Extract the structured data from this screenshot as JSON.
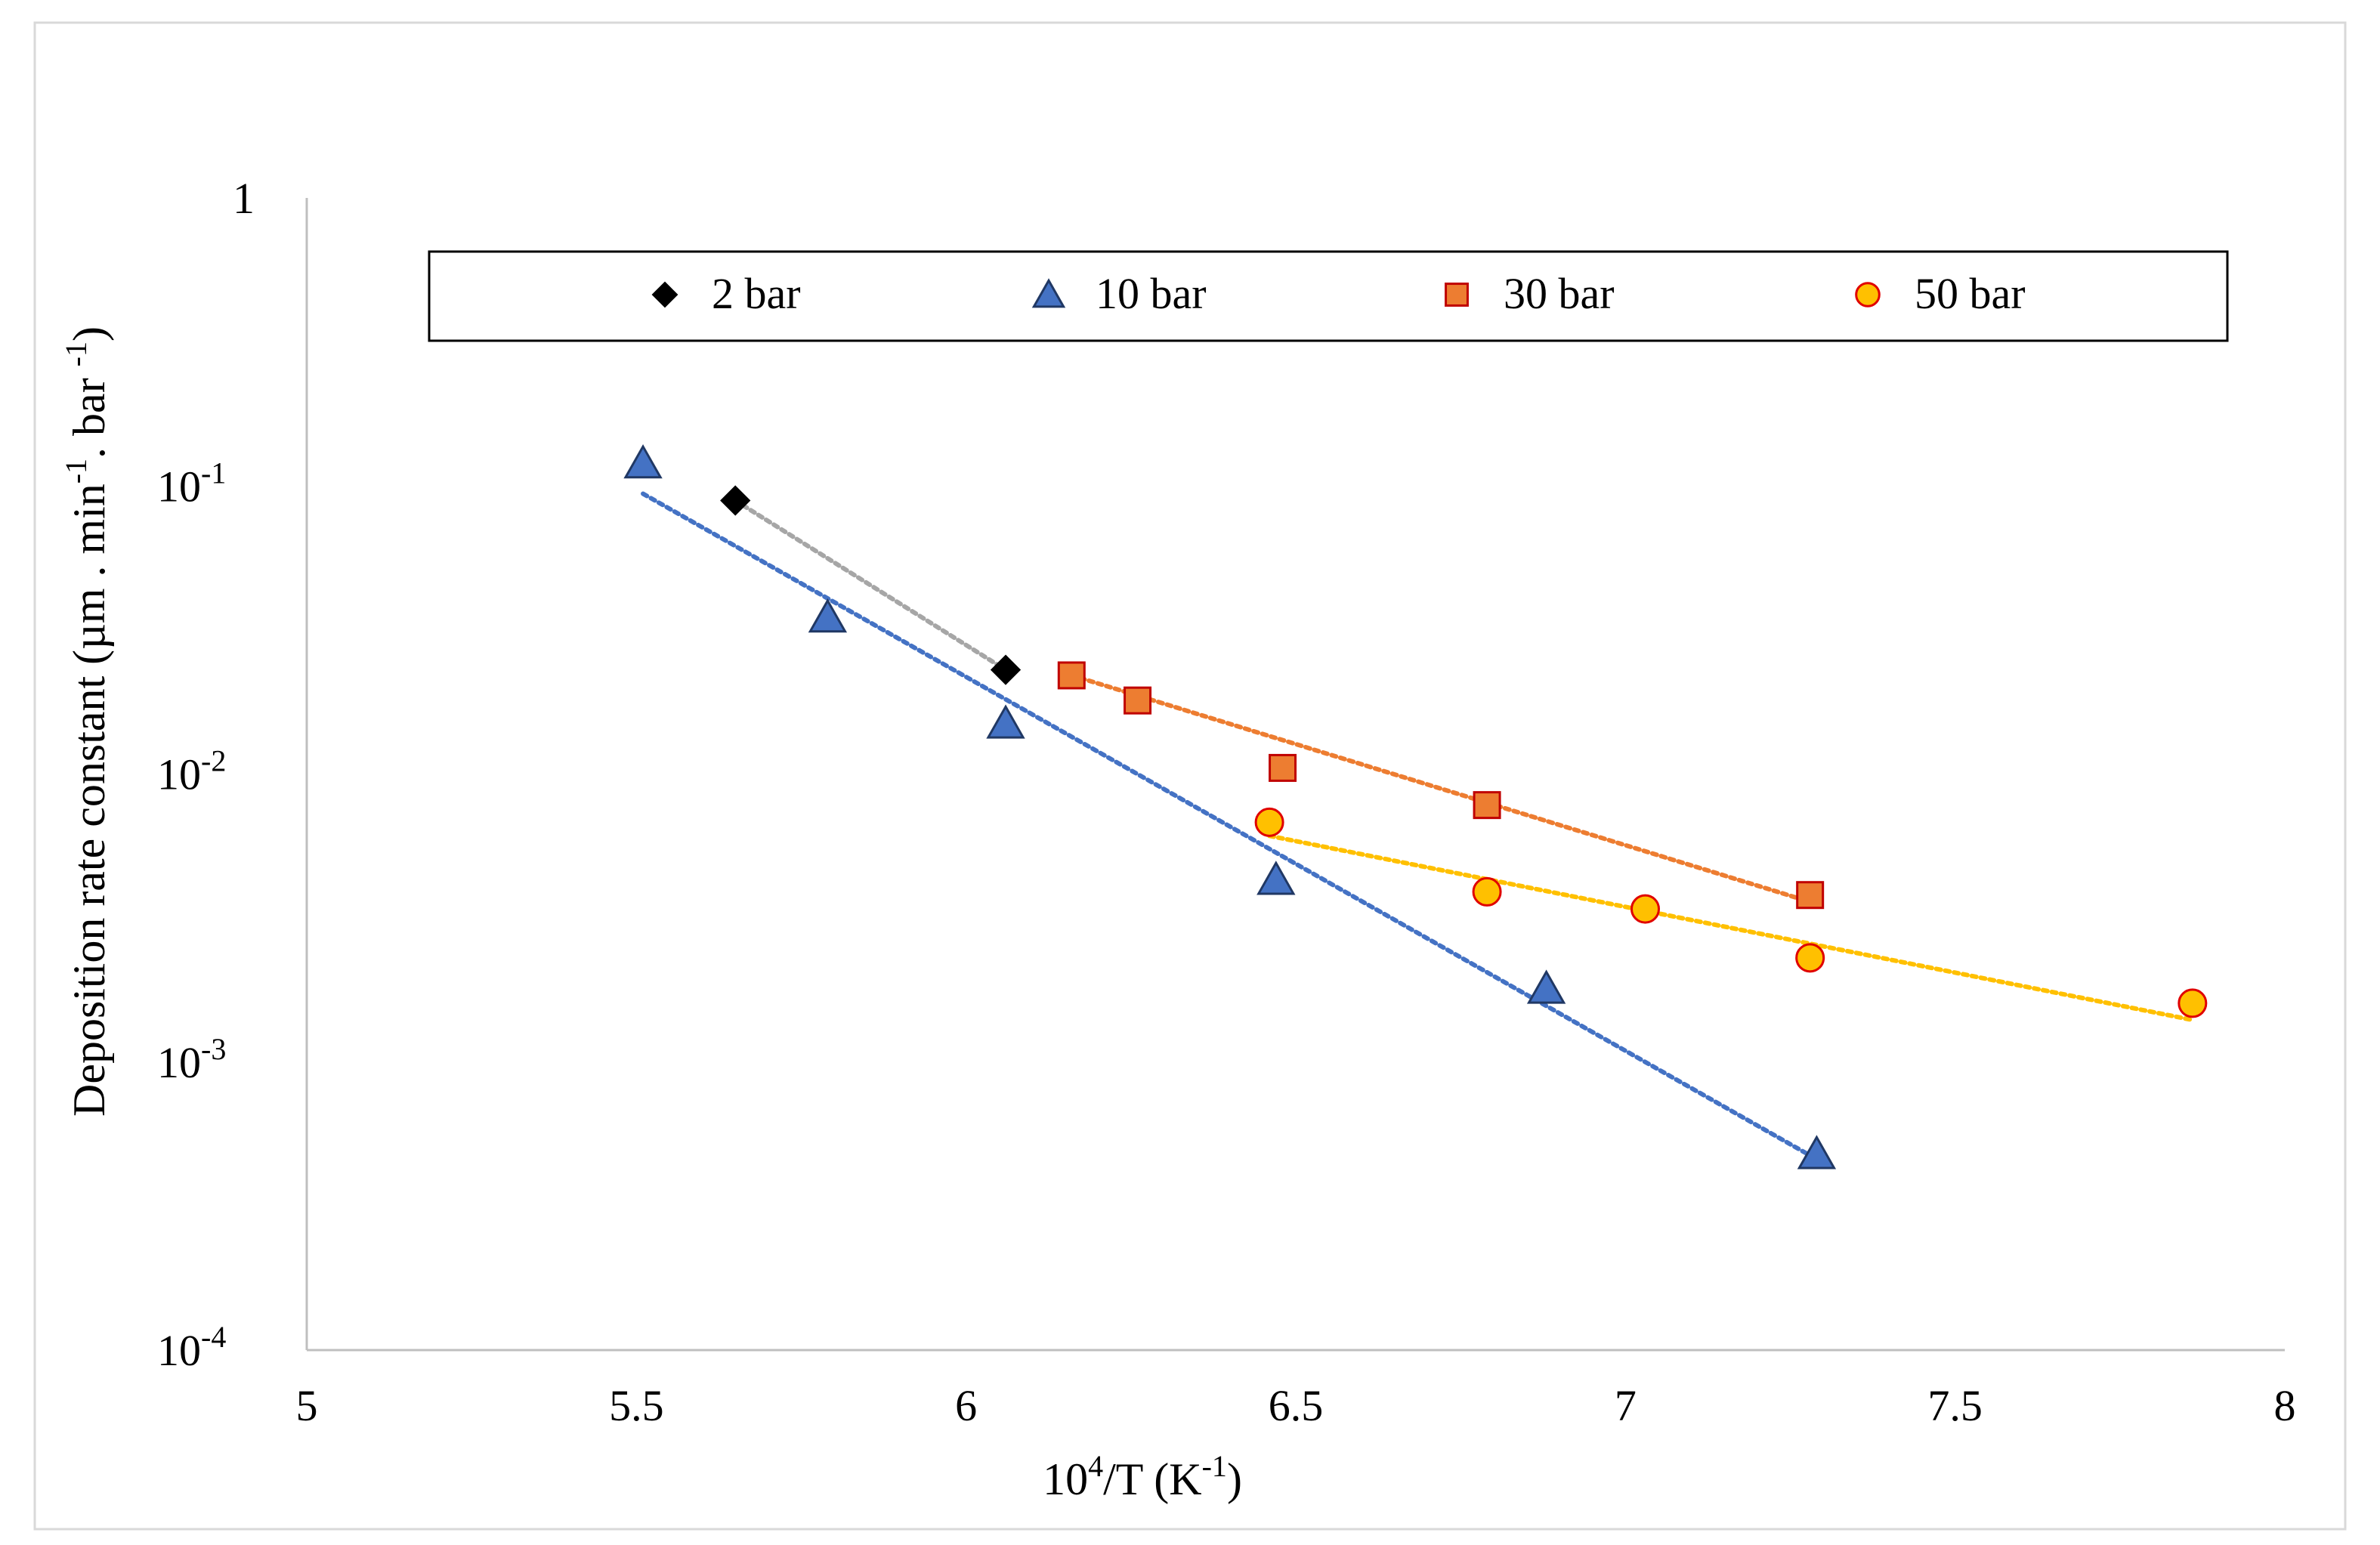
{
  "chart_data": {
    "type": "scatter",
    "title": "",
    "xlabel": {
      "base": "10",
      "sup": "4",
      "mid": "/T (K",
      "sup2": "-1",
      "end": ")"
    },
    "ylabel": {
      "p1": "Deposition rate constant (µm . min",
      "s1": "-1",
      "p2": ". bar ",
      "s2": "-1",
      "p3": ")"
    },
    "xlim": [
      5,
      8
    ],
    "ylim": [
      0.0001,
      1
    ],
    "yscale": "log",
    "xticks": [
      "5",
      "5.5",
      "6",
      "6.5",
      "7",
      "7.5",
      "8"
    ],
    "yticks": [
      {
        "value": 1,
        "base": "1",
        "exp": ""
      },
      {
        "value": 0.1,
        "base": "10",
        "exp": "-1"
      },
      {
        "value": 0.01,
        "base": "10",
        "exp": "-2"
      },
      {
        "value": 0.001,
        "base": "10",
        "exp": "-3"
      },
      {
        "value": 0.0001,
        "base": "10",
        "exp": "-4"
      }
    ],
    "legend_position": "top",
    "series": [
      {
        "name": "2 bar",
        "marker": "diamond",
        "color": "#000000",
        "edge": "#000000",
        "trend_color": "#a6a6a6",
        "x": [
          5.65,
          6.06
        ],
        "y": [
          0.089,
          0.023
        ],
        "trend": [
          [
            5.65,
            0.089
          ],
          [
            6.06,
            0.023
          ]
        ]
      },
      {
        "name": "10 bar",
        "marker": "triangle",
        "color": "#4472c4",
        "edge": "#203864",
        "trend_color": "#4472c4",
        "x": [
          5.51,
          5.79,
          6.06,
          6.47,
          6.88,
          7.29
        ],
        "y": [
          0.12,
          0.035,
          0.015,
          0.0043,
          0.0018,
          0.00048
        ],
        "trend": [
          [
            5.51,
            0.094
          ],
          [
            7.29,
            0.00046
          ]
        ]
      },
      {
        "name": "30 bar",
        "marker": "square",
        "color": "#ed7d31",
        "edge": "#c00000",
        "trend_color": "#ed7d31",
        "x": [
          6.16,
          6.26,
          6.48,
          6.79,
          7.28
        ],
        "y": [
          0.022,
          0.018,
          0.0105,
          0.0078,
          0.0038
        ],
        "trend": [
          [
            6.16,
            0.022
          ],
          [
            7.28,
            0.0036
          ]
        ]
      },
      {
        "name": "50 bar",
        "marker": "circle",
        "color": "#ffc000",
        "edge": "#e00000",
        "trend_color": "#ffc000",
        "x": [
          6.46,
          6.79,
          7.03,
          7.28,
          7.86
        ],
        "y": [
          0.0068,
          0.0039,
          0.0034,
          0.0023,
          0.0016
        ],
        "trend": [
          [
            6.46,
            0.0061
          ],
          [
            7.86,
            0.0014
          ]
        ]
      }
    ]
  }
}
